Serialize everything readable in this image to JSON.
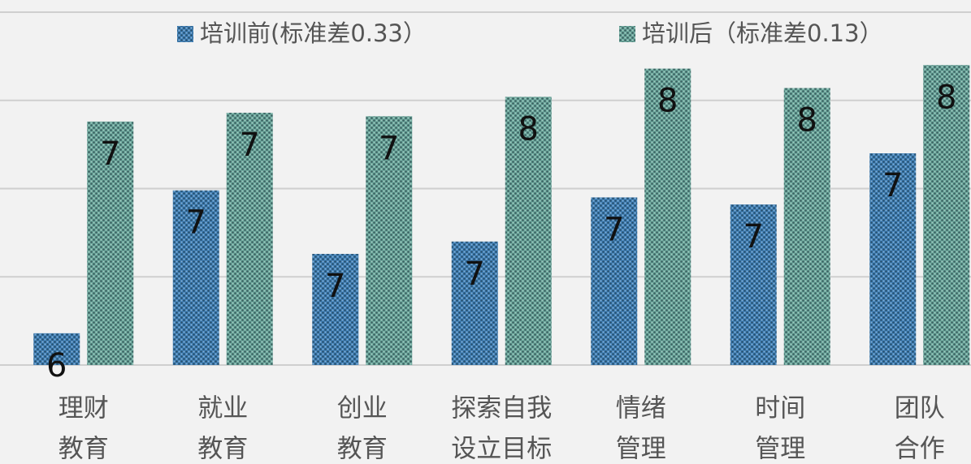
{
  "chart_data": {
    "type": "bar",
    "categories": [
      [
        "理财",
        "教育"
      ],
      [
        "就业",
        "教育"
      ],
      [
        "创业",
        "教育"
      ],
      [
        "探索自我",
        "设立目标"
      ],
      [
        "情绪",
        "管理"
      ],
      [
        "时间",
        "管理"
      ],
      [
        "团队",
        "合作"
      ]
    ],
    "series": [
      {
        "name": "培训前(标准差0.33）",
        "color": "#3f80b8",
        "values": [
          6.18,
          6.99,
          6.63,
          6.7,
          6.95,
          6.91,
          7.2
        ],
        "value_labels": [
          "6",
          "7",
          "7",
          "7",
          "7",
          "7",
          "7"
        ]
      },
      {
        "name": "培训后（标准差0.13）",
        "color": "#6aa79b",
        "values": [
          7.38,
          7.43,
          7.41,
          7.52,
          7.68,
          7.57,
          7.7
        ],
        "value_labels": [
          "7",
          "7",
          "7",
          "8",
          "8",
          "8",
          "8"
        ]
      }
    ],
    "ylim": [
      6,
      8
    ],
    "yticks": [
      6,
      6.5,
      7,
      7.5,
      8
    ],
    "grid": true
  }
}
